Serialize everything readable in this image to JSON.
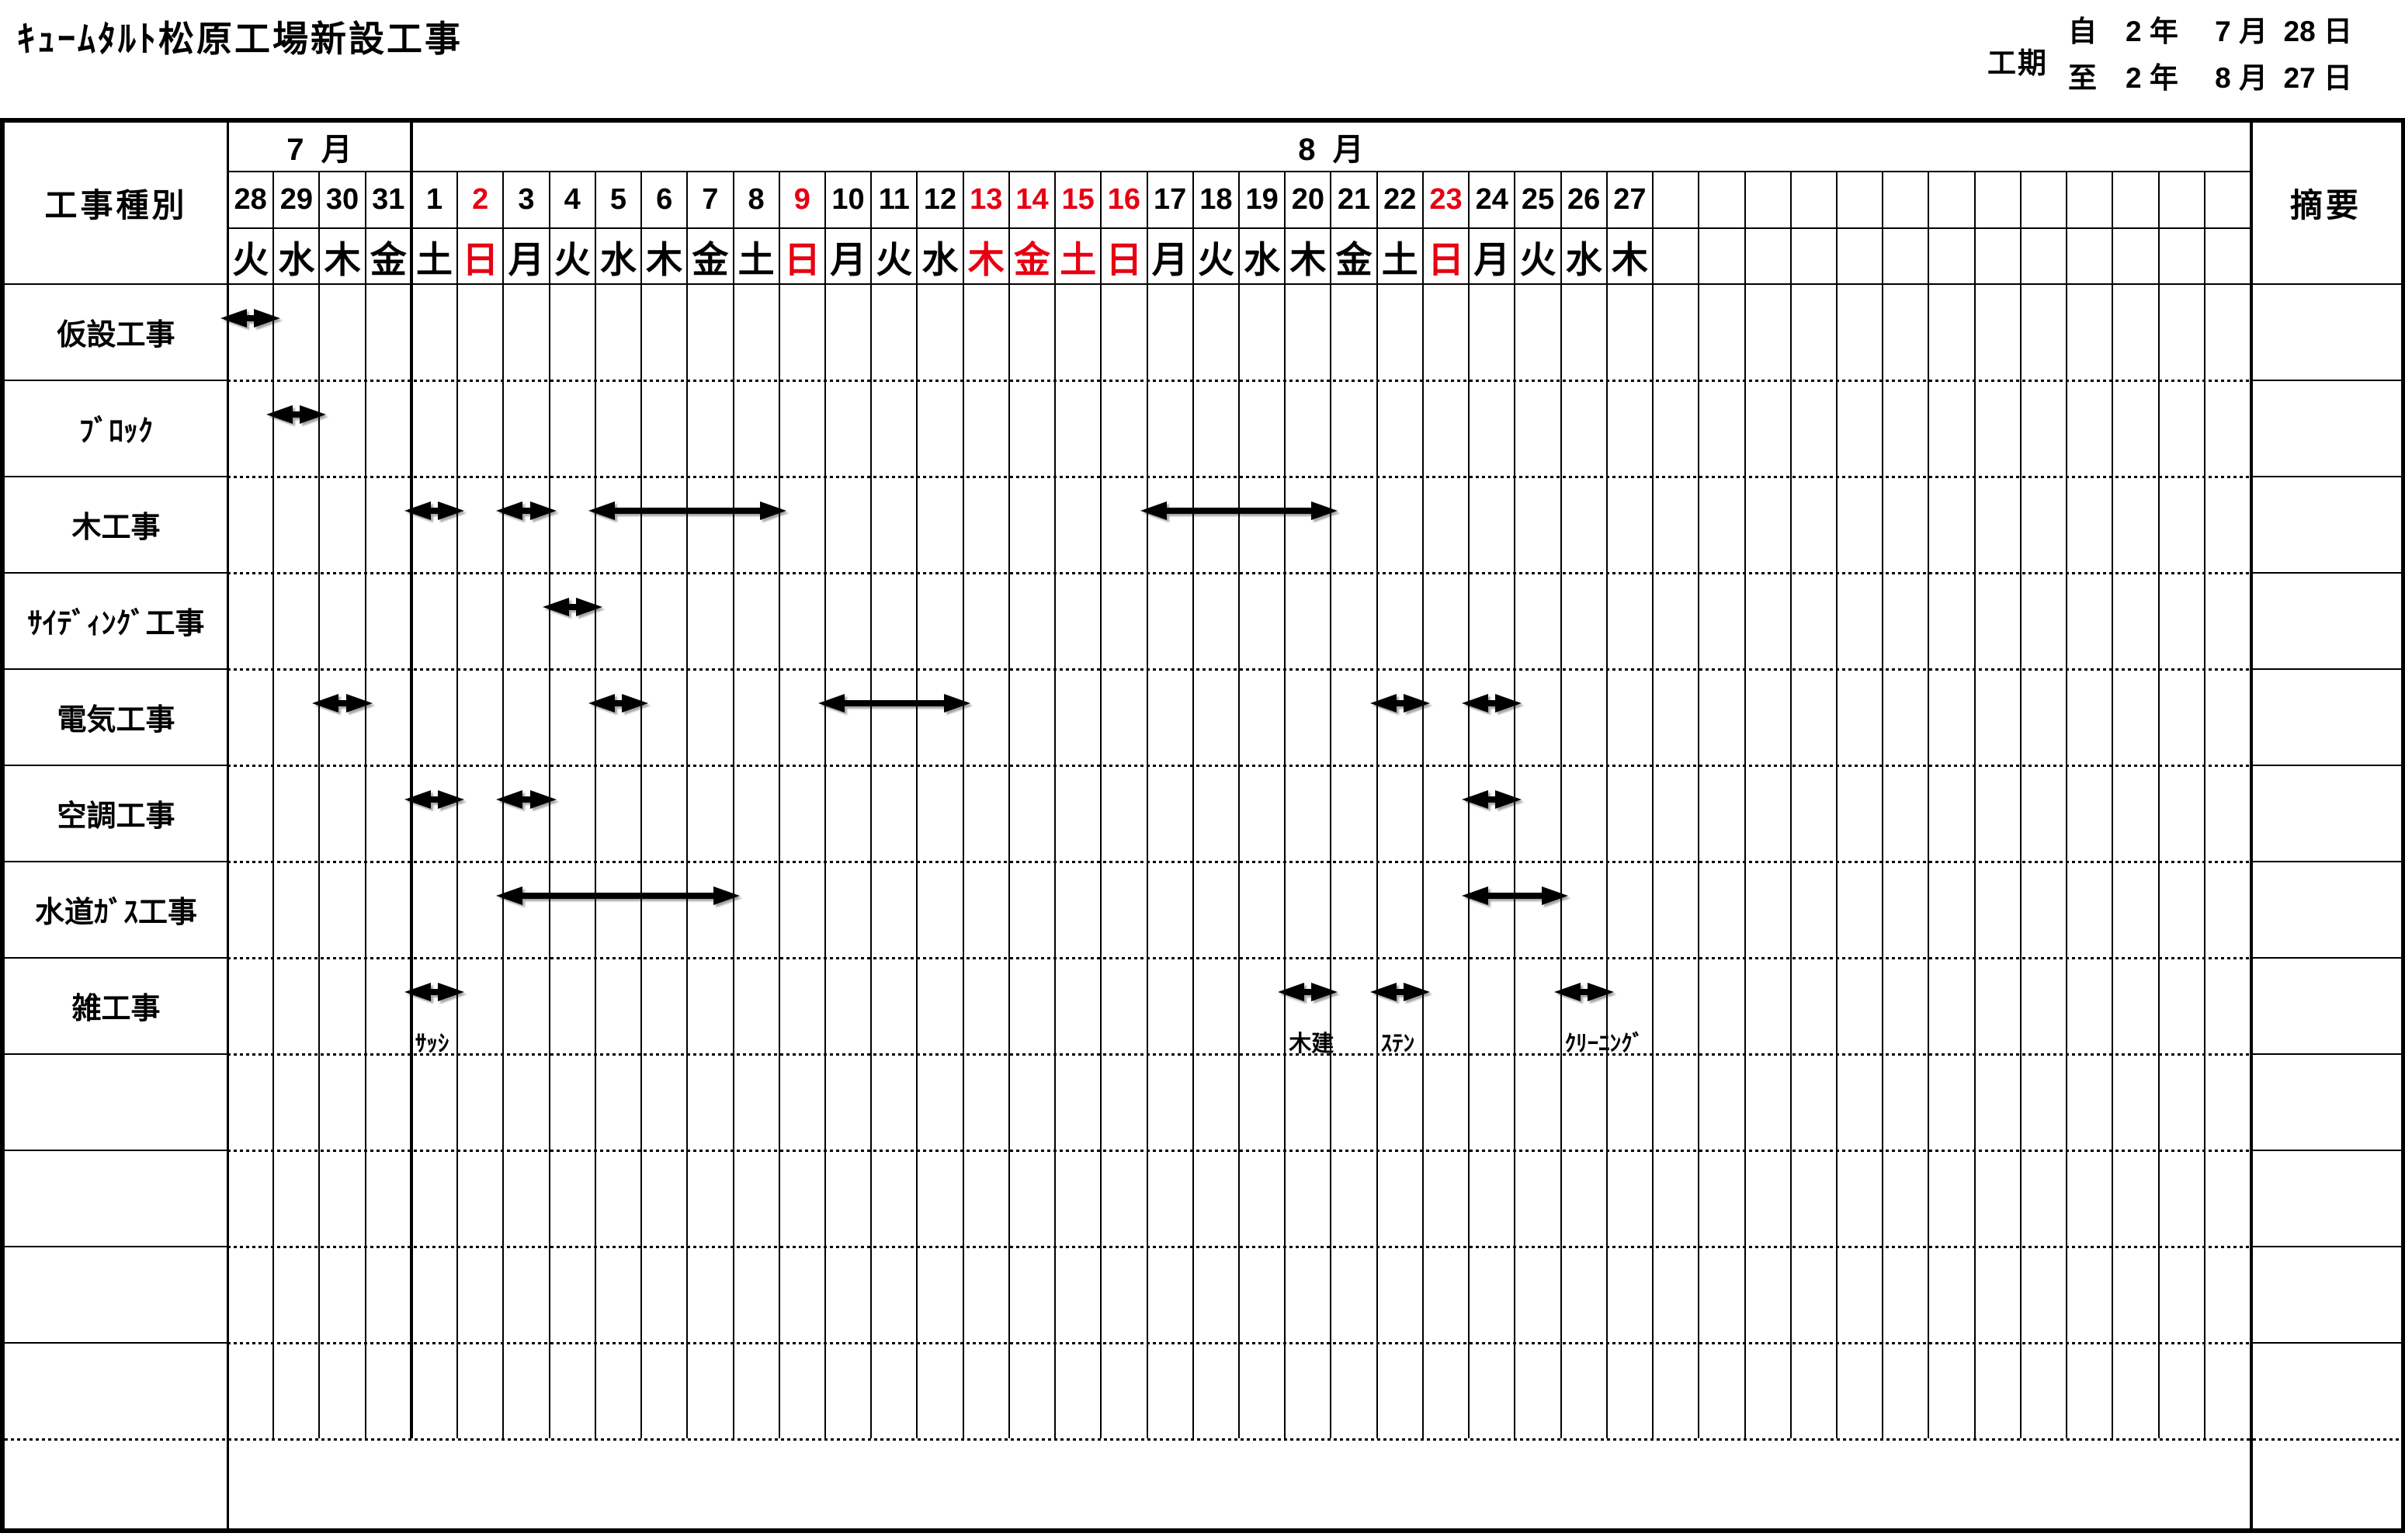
{
  "title": "ｷｭｰﾑﾀﾙﾄ松原工場新設工事",
  "period": {
    "label": "工期",
    "from": "自　2 年　 7 月  28 日",
    "to": "至　2 年　 8 月  27 日"
  },
  "colors": {
    "ink": "#000000",
    "holiday_red": "#e60012"
  },
  "table": {
    "work_type_header": "工事種別",
    "remarks_header": "摘要",
    "months": [
      {
        "label": "7  月",
        "span": 4
      },
      {
        "label": "8  月",
        "span": 40
      }
    ],
    "columns": [
      {
        "date": "28",
        "day": "火",
        "red": false
      },
      {
        "date": "29",
        "day": "水",
        "red": false
      },
      {
        "date": "30",
        "day": "木",
        "red": false
      },
      {
        "date": "31",
        "day": "金",
        "red": false
      },
      {
        "date": "1",
        "day": "土",
        "red": false
      },
      {
        "date": "2",
        "day": "日",
        "red": true
      },
      {
        "date": "3",
        "day": "月",
        "red": false
      },
      {
        "date": "4",
        "day": "火",
        "red": false
      },
      {
        "date": "5",
        "day": "水",
        "red": false
      },
      {
        "date": "6",
        "day": "木",
        "red": false
      },
      {
        "date": "7",
        "day": "金",
        "red": false
      },
      {
        "date": "8",
        "day": "土",
        "red": false
      },
      {
        "date": "9",
        "day": "日",
        "red": true
      },
      {
        "date": "10",
        "day": "月",
        "red": false
      },
      {
        "date": "11",
        "day": "火",
        "red": false
      },
      {
        "date": "12",
        "day": "水",
        "red": false
      },
      {
        "date": "13",
        "day": "木",
        "red": true
      },
      {
        "date": "14",
        "day": "金",
        "red": true
      },
      {
        "date": "15",
        "day": "土",
        "red": true
      },
      {
        "date": "16",
        "day": "日",
        "red": true
      },
      {
        "date": "17",
        "day": "月",
        "red": false
      },
      {
        "date": "18",
        "day": "火",
        "red": false
      },
      {
        "date": "19",
        "day": "水",
        "red": false
      },
      {
        "date": "20",
        "day": "木",
        "red": false
      },
      {
        "date": "21",
        "day": "金",
        "red": false
      },
      {
        "date": "22",
        "day": "土",
        "red": false
      },
      {
        "date": "23",
        "day": "日",
        "red": true
      },
      {
        "date": "24",
        "day": "月",
        "red": false
      },
      {
        "date": "25",
        "day": "火",
        "red": false
      },
      {
        "date": "26",
        "day": "水",
        "red": false
      },
      {
        "date": "27",
        "day": "木",
        "red": false
      },
      {
        "date": "",
        "day": "",
        "red": false
      },
      {
        "date": "",
        "day": "",
        "red": false
      },
      {
        "date": "",
        "day": "",
        "red": false
      },
      {
        "date": "",
        "day": "",
        "red": false
      },
      {
        "date": "",
        "day": "",
        "red": false
      },
      {
        "date": "",
        "day": "",
        "red": false
      },
      {
        "date": "",
        "day": "",
        "red": false
      },
      {
        "date": "",
        "day": "",
        "red": false
      },
      {
        "date": "",
        "day": "",
        "red": false
      },
      {
        "date": "",
        "day": "",
        "red": false
      },
      {
        "date": "",
        "day": "",
        "red": false
      },
      {
        "date": "",
        "day": "",
        "red": false
      },
      {
        "date": "",
        "day": "",
        "red": false
      }
    ],
    "rows": [
      {
        "label": "仮設工事"
      },
      {
        "label": "ﾌﾞﾛｯｸ"
      },
      {
        "label": "木工事"
      },
      {
        "label": "ｻｲﾃﾞｨﾝｸﾞ工事"
      },
      {
        "label": "電気工事"
      },
      {
        "label": "空調工事"
      },
      {
        "label": "水道ｶﾞｽ工事"
      },
      {
        "label": "雑工事"
      },
      {
        "label": ""
      },
      {
        "label": ""
      },
      {
        "label": ""
      },
      {
        "label": ""
      },
      {
        "label": ""
      }
    ],
    "arrows": [
      {
        "row": 0,
        "c1": 0,
        "c2": 1,
        "label": ""
      },
      {
        "row": 1,
        "c1": 1,
        "c2": 2,
        "label": ""
      },
      {
        "row": 2,
        "c1": 4,
        "c2": 5,
        "label": ""
      },
      {
        "row": 2,
        "c1": 6,
        "c2": 7,
        "label": ""
      },
      {
        "row": 2,
        "c1": 8,
        "c2": 12,
        "label": ""
      },
      {
        "row": 2,
        "c1": 20,
        "c2": 24,
        "label": ""
      },
      {
        "row": 3,
        "c1": 7,
        "c2": 8,
        "label": ""
      },
      {
        "row": 4,
        "c1": 2,
        "c2": 3,
        "label": ""
      },
      {
        "row": 4,
        "c1": 8,
        "c2": 9,
        "label": ""
      },
      {
        "row": 4,
        "c1": 13,
        "c2": 16,
        "label": ""
      },
      {
        "row": 4,
        "c1": 25,
        "c2": 26,
        "label": ""
      },
      {
        "row": 4,
        "c1": 27,
        "c2": 28,
        "label": ""
      },
      {
        "row": 5,
        "c1": 4,
        "c2": 5,
        "label": ""
      },
      {
        "row": 5,
        "c1": 6,
        "c2": 7,
        "label": ""
      },
      {
        "row": 5,
        "c1": 27,
        "c2": 28,
        "label": ""
      },
      {
        "row": 6,
        "c1": 6,
        "c2": 11,
        "label": ""
      },
      {
        "row": 6,
        "c1": 27,
        "c2": 29,
        "label": ""
      },
      {
        "row": 7,
        "c1": 4,
        "c2": 5,
        "label": "ｻｯｼ"
      },
      {
        "row": 7,
        "c1": 23,
        "c2": 24,
        "label": "木建"
      },
      {
        "row": 7,
        "c1": 25,
        "c2": 26,
        "label": "ｽﾃﾝ"
      },
      {
        "row": 7,
        "c1": 29,
        "c2": 30,
        "label": "ｸﾘｰﾆﾝｸﾞ"
      }
    ]
  },
  "chart_data": {
    "type": "gantt",
    "title": "ｷｭｰﾑﾀﾙﾄ松原工場新設工事",
    "period": {
      "from": "2年 7月 28日",
      "to": "2年 8月 27日"
    },
    "calendar_start": "7/28",
    "calendar_end": "8/27",
    "red_dates": [
      "8/2",
      "8/9",
      "8/13",
      "8/14",
      "8/15",
      "8/16",
      "8/23"
    ],
    "tasks": [
      {
        "name": "仮設工事",
        "bars": [
          {
            "start": "7/28",
            "end": "7/28",
            "caption": ""
          }
        ]
      },
      {
        "name": "ﾌﾞﾛｯｸ",
        "bars": [
          {
            "start": "7/29",
            "end": "7/29",
            "caption": ""
          }
        ]
      },
      {
        "name": "木工事",
        "bars": [
          {
            "start": "8/1",
            "end": "8/1",
            "caption": ""
          },
          {
            "start": "8/3",
            "end": "8/3",
            "caption": ""
          },
          {
            "start": "8/5",
            "end": "8/8",
            "caption": ""
          },
          {
            "start": "8/17",
            "end": "8/20",
            "caption": ""
          }
        ]
      },
      {
        "name": "ｻｲﾃﾞｨﾝｸﾞ工事",
        "bars": [
          {
            "start": "8/4",
            "end": "8/4",
            "caption": ""
          }
        ]
      },
      {
        "name": "電気工事",
        "bars": [
          {
            "start": "7/30",
            "end": "7/30",
            "caption": ""
          },
          {
            "start": "8/5",
            "end": "8/5",
            "caption": ""
          },
          {
            "start": "8/10",
            "end": "8/12",
            "caption": ""
          },
          {
            "start": "8/22",
            "end": "8/22",
            "caption": ""
          },
          {
            "start": "8/24",
            "end": "8/24",
            "caption": ""
          }
        ]
      },
      {
        "name": "空調工事",
        "bars": [
          {
            "start": "8/1",
            "end": "8/1",
            "caption": ""
          },
          {
            "start": "8/3",
            "end": "8/3",
            "caption": ""
          },
          {
            "start": "8/24",
            "end": "8/24",
            "caption": ""
          }
        ]
      },
      {
        "name": "水道ｶﾞｽ工事",
        "bars": [
          {
            "start": "8/3",
            "end": "8/7",
            "caption": ""
          },
          {
            "start": "8/24",
            "end": "8/25",
            "caption": ""
          }
        ]
      },
      {
        "name": "雑工事",
        "bars": [
          {
            "start": "8/1",
            "end": "8/1",
            "caption": "ｻｯｼ"
          },
          {
            "start": "8/20",
            "end": "8/20",
            "caption": "木建"
          },
          {
            "start": "8/22",
            "end": "8/22",
            "caption": "ｽﾃﾝ"
          },
          {
            "start": "8/26",
            "end": "8/26",
            "caption": "ｸﾘｰﾆﾝｸﾞ"
          }
        ]
      }
    ]
  }
}
